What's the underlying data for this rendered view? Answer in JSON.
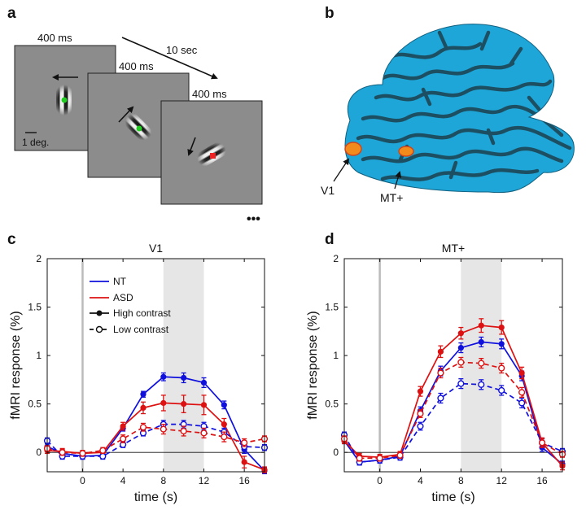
{
  "panel_labels": [
    "a",
    "b",
    "c",
    "d"
  ],
  "stimulus": {
    "durations": [
      "400 ms",
      "400 ms",
      "400 ms"
    ],
    "interval": "10 sec",
    "scale_label": "1 deg.",
    "ellipsis": "•••",
    "dot_colors": [
      "#22cc22",
      "#22cc22",
      "#ee2222"
    ]
  },
  "brain": {
    "labels": [
      "V1",
      "MT+"
    ],
    "surface_color": "#1fa6d8",
    "pattern_color": "#1d4f63",
    "roi_color": "#f28a1c"
  },
  "legend": {
    "entries": [
      "NT",
      "ASD",
      "High contrast",
      "Low contrast"
    ],
    "colors": {
      "NT": "#1010dd",
      "ASD": "#dd1111"
    }
  },
  "chart_data": [
    {
      "type": "line",
      "title": "V1",
      "xlabel": "time (s)",
      "ylabel": "fMRI response (%)",
      "xlim": [
        -3.5,
        18
      ],
      "ylim": [
        -0.2,
        2
      ],
      "xticks": [
        0,
        4,
        8,
        12,
        16
      ],
      "yticks": [
        0,
        0.5,
        1,
        1.5,
        2
      ],
      "ytick_labels": [
        "0",
        "0.5",
        "1",
        "1.5",
        "2"
      ],
      "shaded_interval": [
        8,
        12
      ],
      "stimulus_onset": 0,
      "x": [
        -3.5,
        -2,
        0,
        2,
        4,
        6,
        8,
        10,
        12,
        14,
        16,
        18
      ],
      "series": [
        {
          "name": "NT",
          "contrast": "High contrast",
          "color": "#1010dd",
          "values": [
            0.06,
            -0.01,
            -0.04,
            -0.03,
            0.25,
            0.6,
            0.78,
            0.77,
            0.72,
            0.49,
            0.03,
            -0.19
          ],
          "errors": [
            0.03,
            0.03,
            0.03,
            0.03,
            0.03,
            0.03,
            0.04,
            0.05,
            0.05,
            0.04,
            0.04,
            0.03
          ]
        },
        {
          "name": "ASD",
          "contrast": "High contrast",
          "color": "#dd1111",
          "values": [
            0.02,
            0.01,
            -0.01,
            0.0,
            0.27,
            0.46,
            0.51,
            0.5,
            0.49,
            0.29,
            -0.1,
            -0.18
          ],
          "errors": [
            0.03,
            0.03,
            0.03,
            0.03,
            0.04,
            0.06,
            0.08,
            0.09,
            0.1,
            0.06,
            0.06,
            0.03
          ]
        },
        {
          "name": "NT",
          "contrast": "Low contrast",
          "color": "#1010dd",
          "values": [
            0.12,
            -0.04,
            -0.04,
            -0.04,
            0.08,
            0.2,
            0.29,
            0.29,
            0.27,
            0.21,
            0.06,
            0.05
          ],
          "errors": [
            0.03,
            0.03,
            0.03,
            0.03,
            0.03,
            0.03,
            0.04,
            0.04,
            0.04,
            0.04,
            0.03,
            0.03
          ]
        },
        {
          "name": "ASD",
          "contrast": "Low contrast",
          "color": "#dd1111",
          "values": [
            0.04,
            0.0,
            -0.01,
            0.02,
            0.14,
            0.26,
            0.24,
            0.22,
            0.2,
            0.16,
            0.1,
            0.14
          ],
          "errors": [
            0.03,
            0.03,
            0.03,
            0.03,
            0.04,
            0.04,
            0.05,
            0.05,
            0.05,
            0.05,
            0.04,
            0.03
          ]
        }
      ]
    },
    {
      "type": "line",
      "title": "MT+",
      "xlabel": "time (s)",
      "ylabel": "fMRI response (%)",
      "xlim": [
        -3.5,
        18
      ],
      "ylim": [
        -0.2,
        2
      ],
      "xticks": [
        0,
        4,
        8,
        12,
        16
      ],
      "yticks": [
        0,
        0.5,
        1,
        1.5,
        2
      ],
      "ytick_labels": [
        "0",
        "0.5",
        "1",
        "1.5",
        "2"
      ],
      "shaded_interval": [
        8,
        12
      ],
      "stimulus_onset": 0,
      "x": [
        -3.5,
        -2,
        0,
        2,
        4,
        6,
        8,
        10,
        12,
        14,
        16,
        18
      ],
      "series": [
        {
          "name": "NT",
          "contrast": "High contrast",
          "color": "#1010dd",
          "values": [
            0.12,
            -0.1,
            -0.08,
            -0.04,
            0.43,
            0.84,
            1.08,
            1.14,
            1.12,
            0.79,
            0.05,
            -0.12
          ],
          "errors": [
            0.03,
            0.03,
            0.03,
            0.03,
            0.04,
            0.05,
            0.05,
            0.05,
            0.05,
            0.05,
            0.04,
            0.03
          ]
        },
        {
          "name": "ASD",
          "contrast": "High contrast",
          "color": "#dd1111",
          "values": [
            0.12,
            -0.04,
            -0.05,
            -0.02,
            0.63,
            1.04,
            1.23,
            1.31,
            1.29,
            0.82,
            0.1,
            -0.14
          ],
          "errors": [
            0.03,
            0.03,
            0.03,
            0.03,
            0.05,
            0.06,
            0.06,
            0.07,
            0.07,
            0.06,
            0.05,
            0.04
          ]
        },
        {
          "name": "NT",
          "contrast": "Low contrast",
          "color": "#1010dd",
          "values": [
            0.18,
            -0.1,
            -0.08,
            -0.05,
            0.27,
            0.56,
            0.71,
            0.7,
            0.64,
            0.51,
            0.1,
            0.01
          ],
          "errors": [
            0.03,
            0.03,
            0.03,
            0.03,
            0.04,
            0.05,
            0.05,
            0.05,
            0.05,
            0.05,
            0.04,
            0.03
          ]
        },
        {
          "name": "ASD",
          "contrast": "Low contrast",
          "color": "#dd1111",
          "values": [
            0.14,
            -0.06,
            -0.06,
            -0.03,
            0.4,
            0.82,
            0.93,
            0.92,
            0.87,
            0.62,
            0.1,
            -0.02
          ],
          "errors": [
            0.03,
            0.03,
            0.03,
            0.03,
            0.04,
            0.05,
            0.05,
            0.05,
            0.05,
            0.05,
            0.04,
            0.03
          ]
        }
      ]
    }
  ]
}
